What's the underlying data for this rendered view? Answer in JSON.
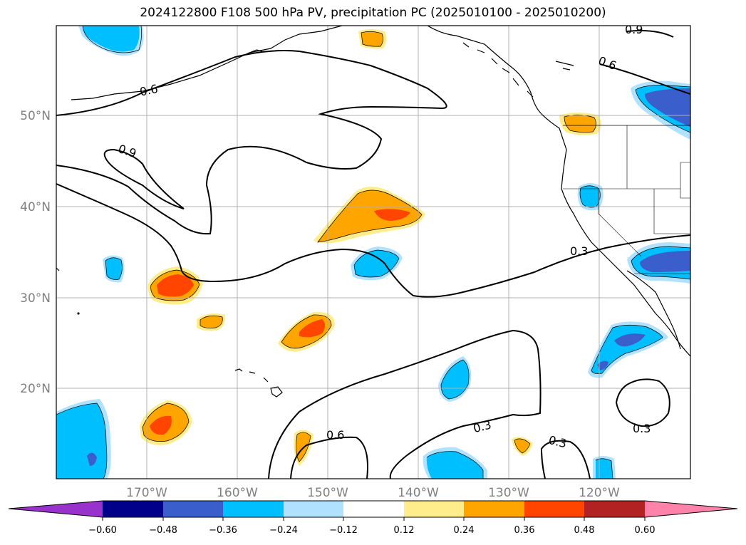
{
  "title": "2024122800 F108 500 hPa PV, precipitation PC (2025010100 - 2025010200)",
  "map": {
    "lat_labels": [
      {
        "value": 50,
        "text": "50°N"
      },
      {
        "value": 40,
        "text": "40°N"
      },
      {
        "value": 30,
        "text": "30°N"
      },
      {
        "value": 20,
        "text": "20°N"
      }
    ],
    "lon_labels": [
      {
        "value": -170,
        "text": "170°W"
      },
      {
        "value": -160,
        "text": "160°W"
      },
      {
        "value": -150,
        "text": "150°W"
      },
      {
        "value": -140,
        "text": "140°W"
      },
      {
        "value": -130,
        "text": "130°W"
      },
      {
        "value": -120,
        "text": "120°W"
      }
    ],
    "contour_labels": [
      "0.9",
      "0.6",
      "0.6",
      "0.9",
      "0.3",
      "0.6",
      "0.3",
      "0.3",
      "0.3"
    ]
  },
  "colorbar": {
    "ticks": [
      "−0.60",
      "−0.48",
      "−0.36",
      "−0.24",
      "−0.12",
      "0.12",
      "0.24",
      "0.36",
      "0.48",
      "0.60"
    ],
    "colors": {
      "under": "#9932cc",
      "c1": "#00008b",
      "c2": "#3a5fcd",
      "c3": "#00bfff",
      "c4": "#b0e2ff",
      "c5": "#ffffff",
      "c6": "#ffec8b",
      "c7": "#ffa500",
      "c8": "#ff4500",
      "c9": "#b22222",
      "over": "#ff82ab"
    }
  }
}
